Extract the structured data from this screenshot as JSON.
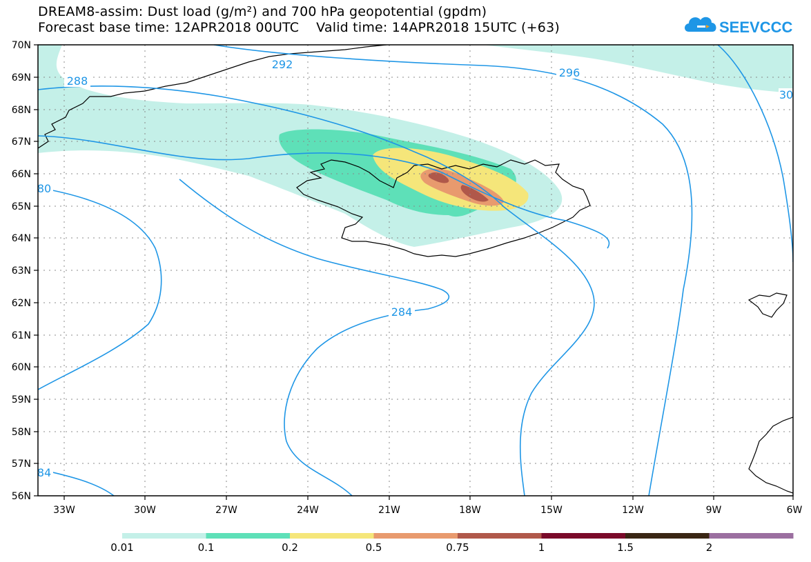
{
  "header": {
    "title_line1": "DREAM8-assim: Dust load (g/m²) and 700 hPa geopotential (gpdm)",
    "title_line2": "Forecast base time: 12APR2018 00UTC    Valid time: 14APR2018 15UTC (+63)"
  },
  "logo": {
    "text": "SEEVCCC",
    "icon": "cloud-logo-icon",
    "color": "#1e96e6"
  },
  "axes": {
    "lat_labels": [
      "70N",
      "69N",
      "68N",
      "67N",
      "66N",
      "65N",
      "64N",
      "63N",
      "62N",
      "61N",
      "60N",
      "59N",
      "58N",
      "57N",
      "56N"
    ],
    "lon_labels": [
      "33W",
      "30W",
      "27W",
      "24W",
      "21W",
      "18W",
      "15W",
      "12W",
      "9W",
      "6W"
    ]
  },
  "contours": {
    "color": "#1e96e6",
    "labels": [
      "292",
      "296",
      "288",
      "80",
      "284",
      "84",
      "30"
    ]
  },
  "colorbar": {
    "colors": [
      "#c4f0e8",
      "#5ee0b8",
      "#f5e67a",
      "#e89a6e",
      "#b0584a",
      "#7a0a2a",
      "#3a2614",
      "#9b6fa0"
    ],
    "labels": [
      "0.01",
      "0.1",
      "0.2",
      "0.5",
      "0.75",
      "1",
      "1.5",
      "2"
    ]
  }
}
